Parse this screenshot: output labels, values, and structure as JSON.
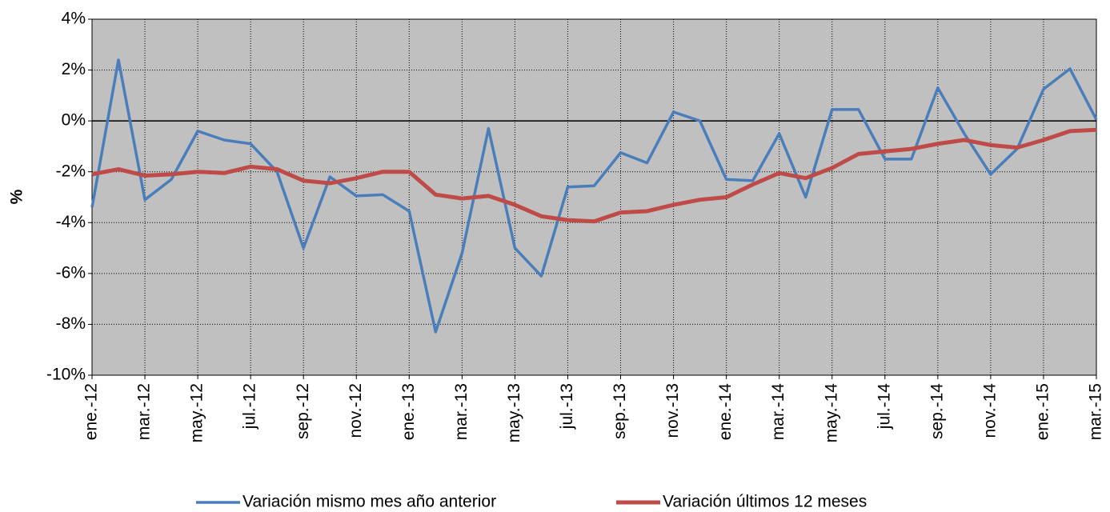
{
  "chart_data": {
    "type": "line",
    "y_label": "%",
    "categories": [
      "ene.-12",
      null,
      "mar.-12",
      null,
      "may.-12",
      null,
      "jul.-12",
      null,
      "sep.-12",
      null,
      "nov.-12",
      null,
      "ene.-13",
      null,
      "mar.-13",
      null,
      "may.-13",
      null,
      "jul.-13",
      null,
      "sep.-13",
      null,
      "nov.-13",
      null,
      "ene.-14",
      null,
      "mar.-14",
      null,
      "may.-14",
      null,
      "jul.-14",
      null,
      "sep.-14",
      null,
      "nov.-14",
      null,
      "ene.-15",
      null,
      "mar.-15"
    ],
    "series": [
      {
        "name": "Variación mismo mes año anterior",
        "color": "#4a7ebb",
        "values": [
          -3.4,
          2.4,
          -3.1,
          -2.3,
          -0.4,
          -0.75,
          -0.9,
          -2.0,
          -5.0,
          -2.2,
          -2.95,
          -2.9,
          -3.55,
          -8.3,
          -5.2,
          -0.3,
          -5.0,
          -6.1,
          -2.6,
          -2.55,
          -1.25,
          -1.65,
          0.35,
          0.0,
          -2.3,
          -2.35,
          -0.5,
          -3.0,
          0.45,
          0.45,
          -1.5,
          -1.5,
          1.3,
          -0.5,
          -2.1,
          -1.1,
          1.25,
          2.05,
          0.05
        ]
      },
      {
        "name": "Variación últimos 12 meses",
        "color": "#be4b48",
        "values": [
          -2.1,
          -1.9,
          -2.15,
          -2.1,
          -2.0,
          -2.05,
          -1.8,
          -1.9,
          -2.35,
          -2.45,
          -2.25,
          -2.0,
          -2.0,
          -2.9,
          -3.05,
          -2.95,
          -3.3,
          -3.75,
          -3.9,
          -3.95,
          -3.6,
          -3.55,
          -3.3,
          -3.1,
          -3.0,
          -2.5,
          -2.05,
          -2.25,
          -1.85,
          -1.3,
          -1.2,
          -1.1,
          -0.9,
          -0.75,
          -0.95,
          -1.05,
          -0.75,
          -0.4,
          -0.35
        ]
      }
    ],
    "ylim": [
      -10,
      4
    ],
    "yticks": [
      {
        "value": -10,
        "label": "-10%"
      },
      {
        "value": -8,
        "label": "-8%"
      },
      {
        "value": -6,
        "label": "-6%"
      },
      {
        "value": -4,
        "label": "-4%"
      },
      {
        "value": -2,
        "label": "-2%"
      },
      {
        "value": 0,
        "label": "0%"
      },
      {
        "value": 2,
        "label": "2%"
      },
      {
        "value": 4,
        "label": "4%"
      }
    ],
    "grid": true,
    "legend": "bottom",
    "background": "#c0c0c0"
  }
}
